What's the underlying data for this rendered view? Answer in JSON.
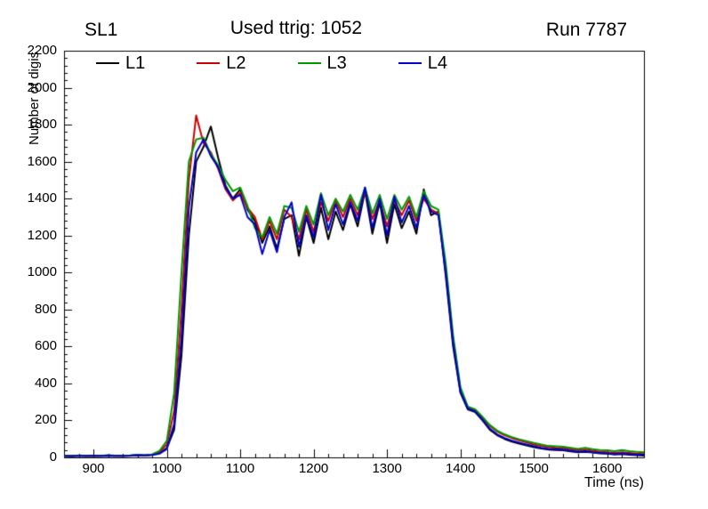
{
  "header": {
    "left": "SL1",
    "right": "Run 7787"
  },
  "chart_data": {
    "type": "line",
    "title": "Used ttrig: 1052",
    "xlabel": "Time (ns)",
    "ylabel": "Number of digis",
    "xlim": [
      860,
      1650
    ],
    "ylim": [
      0,
      2200
    ],
    "x_ticks": [
      900,
      1000,
      1100,
      1200,
      1300,
      1400,
      1500,
      1600
    ],
    "y_ticks": [
      0,
      200,
      400,
      600,
      800,
      1000,
      1200,
      1400,
      1600,
      1800,
      2000,
      2200
    ],
    "x_minor_step": 20,
    "y_minor_step": 40,
    "grid": false,
    "legend_position": "top-inside",
    "x": [
      860,
      870,
      880,
      890,
      900,
      910,
      920,
      930,
      940,
      950,
      960,
      970,
      980,
      990,
      1000,
      1010,
      1020,
      1030,
      1040,
      1050,
      1060,
      1070,
      1080,
      1090,
      1100,
      1110,
      1120,
      1130,
      1140,
      1150,
      1160,
      1170,
      1180,
      1190,
      1200,
      1210,
      1220,
      1230,
      1240,
      1250,
      1260,
      1270,
      1280,
      1290,
      1300,
      1310,
      1320,
      1330,
      1340,
      1350,
      1360,
      1370,
      1380,
      1390,
      1400,
      1410,
      1420,
      1430,
      1440,
      1450,
      1460,
      1470,
      1480,
      1490,
      1500,
      1510,
      1520,
      1530,
      1540,
      1550,
      1560,
      1570,
      1580,
      1590,
      1600,
      1610,
      1620,
      1630,
      1640,
      1650
    ],
    "series": [
      {
        "name": "L1",
        "color": "#000000",
        "values": [
          8,
          6,
          10,
          7,
          9,
          8,
          10,
          9,
          8,
          10,
          12,
          10,
          14,
          22,
          50,
          150,
          550,
          1200,
          1600,
          1680,
          1790,
          1620,
          1470,
          1400,
          1450,
          1340,
          1280,
          1160,
          1250,
          1130,
          1290,
          1310,
          1090,
          1300,
          1160,
          1350,
          1180,
          1330,
          1230,
          1370,
          1250,
          1440,
          1210,
          1380,
          1160,
          1370,
          1240,
          1330,
          1210,
          1450,
          1310,
          1330,
          980,
          600,
          350,
          260,
          245,
          200,
          150,
          120,
          100,
          85,
          75,
          65,
          55,
          48,
          42,
          40,
          38,
          32,
          28,
          30,
          26,
          22,
          20,
          16,
          18,
          14,
          12,
          10
        ]
      },
      {
        "name": "L2",
        "color": "#cc0000",
        "values": [
          7,
          9,
          8,
          10,
          7,
          9,
          11,
          8,
          10,
          9,
          13,
          11,
          15,
          30,
          70,
          250,
          800,
          1500,
          1850,
          1700,
          1650,
          1560,
          1450,
          1390,
          1430,
          1350,
          1300,
          1180,
          1280,
          1180,
          1340,
          1300,
          1180,
          1340,
          1220,
          1380,
          1280,
          1390,
          1300,
          1400,
          1310,
          1440,
          1290,
          1390,
          1250,
          1390,
          1310,
          1390,
          1280,
          1400,
          1340,
          1320,
          1020,
          640,
          370,
          270,
          255,
          215,
          170,
          140,
          120,
          105,
          92,
          82,
          70,
          62,
          55,
          52,
          50,
          44,
          38,
          42,
          36,
          30,
          28,
          24,
          28,
          24,
          20,
          18
        ]
      },
      {
        "name": "L3",
        "color": "#009900",
        "values": [
          9,
          7,
          11,
          8,
          10,
          9,
          12,
          10,
          9,
          11,
          14,
          12,
          16,
          35,
          90,
          350,
          1000,
          1600,
          1720,
          1730,
          1640,
          1580,
          1500,
          1440,
          1460,
          1360,
          1240,
          1190,
          1300,
          1210,
          1360,
          1350,
          1220,
          1360,
          1260,
          1430,
          1310,
          1400,
          1330,
          1420,
          1340,
          1460,
          1320,
          1420,
          1290,
          1420,
          1340,
          1410,
          1300,
          1440,
          1360,
          1340,
          1050,
          660,
          380,
          275,
          260,
          220,
          175,
          145,
          125,
          110,
          98,
          88,
          78,
          70,
          62,
          60,
          58,
          52,
          46,
          52,
          45,
          40,
          38,
          34,
          40,
          34,
          30,
          28
        ]
      },
      {
        "name": "L4",
        "color": "#0000cc",
        "values": [
          8,
          7,
          9,
          8,
          10,
          9,
          10,
          8,
          9,
          10,
          12,
          11,
          13,
          20,
          45,
          180,
          650,
          1350,
          1650,
          1720,
          1630,
          1570,
          1460,
          1400,
          1420,
          1300,
          1260,
          1100,
          1230,
          1110,
          1300,
          1380,
          1140,
          1310,
          1190,
          1420,
          1230,
          1370,
          1260,
          1380,
          1280,
          1460,
          1240,
          1400,
          1200,
          1410,
          1270,
          1360,
          1240,
          1420,
          1330,
          1310,
          1000,
          620,
          355,
          265,
          250,
          205,
          155,
          125,
          105,
          90,
          80,
          70,
          60,
          52,
          46,
          44,
          42,
          36,
          30,
          34,
          28,
          24,
          22,
          18,
          22,
          18,
          15,
          14
        ]
      }
    ]
  }
}
